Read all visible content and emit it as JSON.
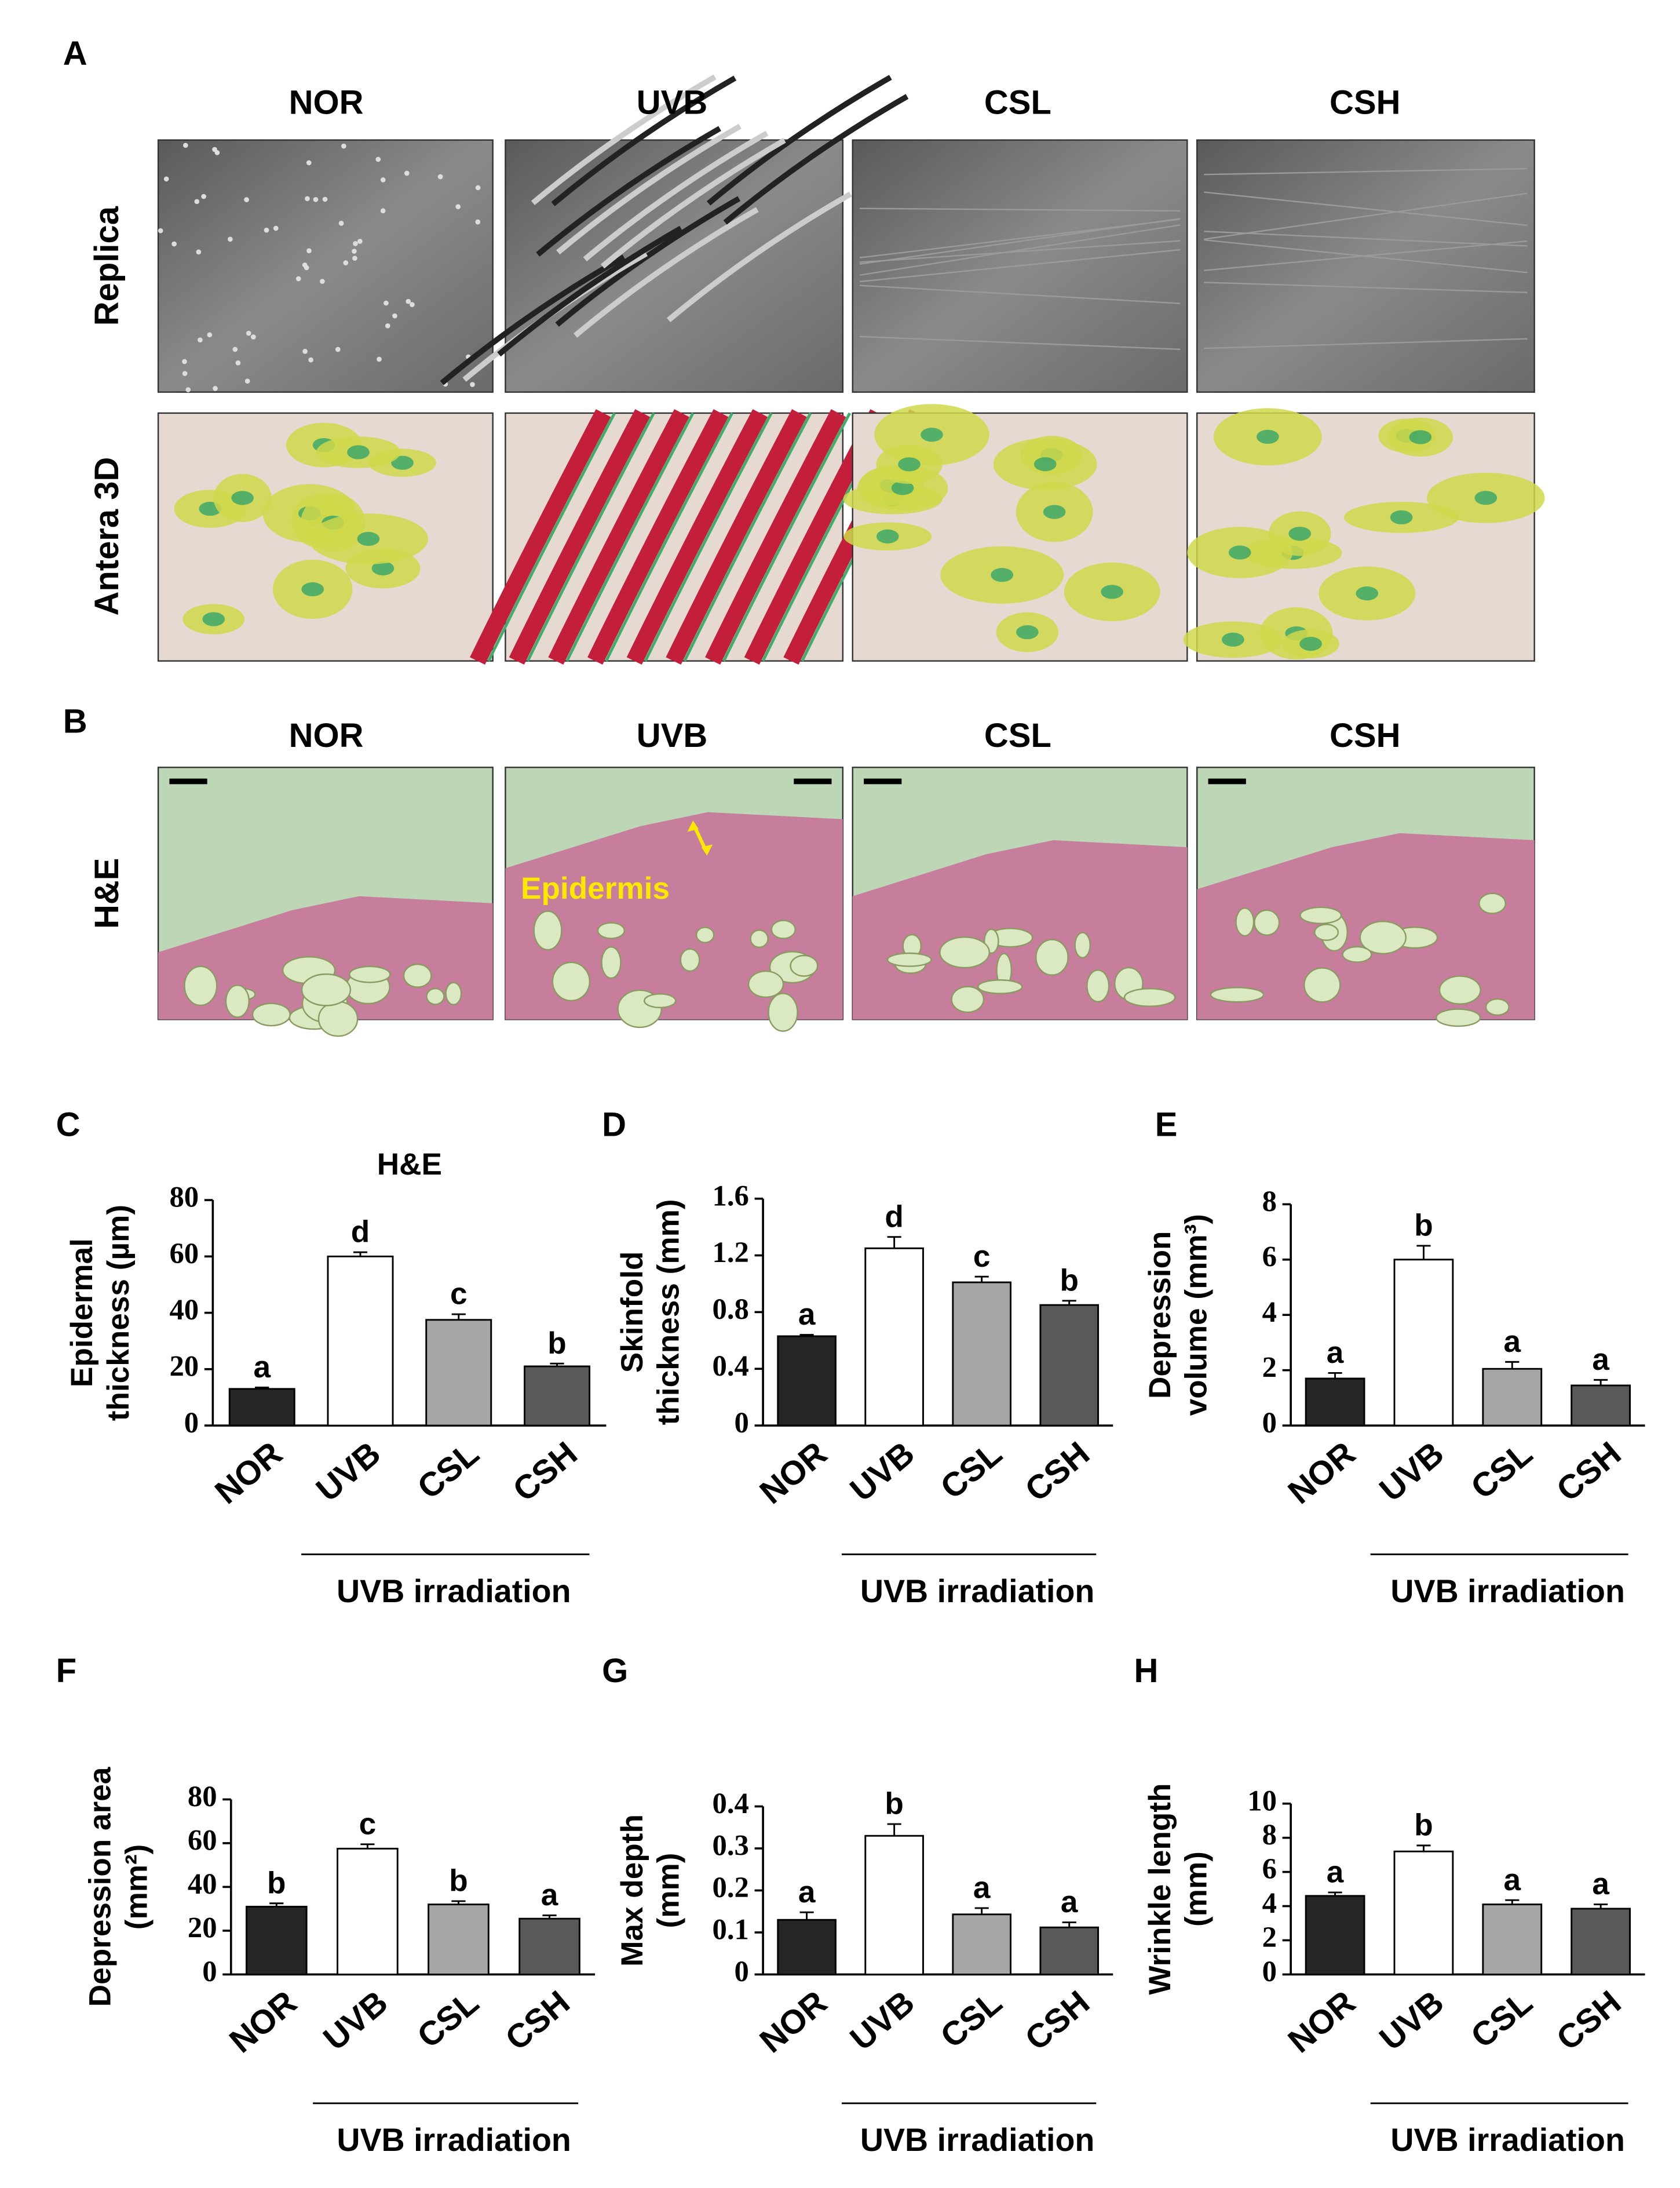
{
  "panel_a": {
    "label": "A",
    "columns": [
      "NOR",
      "UVB",
      "CSL",
      "CSH"
    ],
    "rows": [
      "Replica",
      "Antera 3D"
    ]
  },
  "panel_b": {
    "label": "B",
    "columns": [
      "NOR",
      "UVB",
      "CSL",
      "CSH"
    ],
    "rows": [
      "H&E"
    ],
    "annotation": "Epidermis"
  },
  "chart_data": [
    {
      "type": "bar",
      "label": "C",
      "title": "H&E",
      "ylabel": [
        "Epidermal",
        "thickness (µm)"
      ],
      "categories": [
        "NOR",
        "UVB",
        "CSL",
        "CSH"
      ],
      "values": [
        13,
        60,
        37.5,
        21
      ],
      "errors": [
        0.5,
        1.5,
        2,
        1
      ],
      "annotations": [
        "a",
        "d",
        "c",
        "b"
      ],
      "colors": [
        "#262626",
        "#ffffff",
        "#a6a6a6",
        "#595959"
      ],
      "ylim": [
        0,
        80
      ],
      "yticks": [
        0,
        20,
        40,
        60,
        80
      ],
      "group_label": "UVB irradiation"
    },
    {
      "type": "bar",
      "label": "D",
      "ylabel": [
        "Skinfold",
        "thickness (mm)"
      ],
      "categories": [
        "NOR",
        "UVB",
        "CSL",
        "CSH"
      ],
      "values": [
        0.63,
        1.25,
        1.01,
        0.85
      ],
      "errors": [
        0.01,
        0.08,
        0.04,
        0.03
      ],
      "annotations": [
        "a",
        "d",
        "c",
        "b"
      ],
      "colors": [
        "#262626",
        "#ffffff",
        "#a6a6a6",
        "#595959"
      ],
      "ylim": [
        0,
        1.6
      ],
      "yticks": [
        0,
        0.4,
        0.8,
        1.2,
        1.6
      ],
      "group_label": "UVB irradiation"
    },
    {
      "type": "bar",
      "label": "E",
      "ylabel": [
        "Depression",
        "volume (mm³)"
      ],
      "categories": [
        "NOR",
        "UVB",
        "CSL",
        "CSH"
      ],
      "values": [
        1.7,
        6.0,
        2.05,
        1.45
      ],
      "errors": [
        0.2,
        0.5,
        0.25,
        0.2
      ],
      "annotations": [
        "a",
        "b",
        "a",
        "a"
      ],
      "colors": [
        "#262626",
        "#ffffff",
        "#a6a6a6",
        "#595959"
      ],
      "ylim": [
        0,
        8
      ],
      "yticks": [
        0,
        2,
        4,
        6,
        8
      ],
      "group_label": "UVB irradiation"
    },
    {
      "type": "bar",
      "label": "F",
      "ylabel": [
        "Depression area",
        "(mm²)"
      ],
      "categories": [
        "NOR",
        "UVB",
        "CSL",
        "CSH"
      ],
      "values": [
        31,
        57.5,
        32,
        25.5
      ],
      "errors": [
        1.5,
        2,
        1.5,
        1.5
      ],
      "annotations": [
        "b",
        "c",
        "b",
        "a"
      ],
      "colors": [
        "#262626",
        "#ffffff",
        "#a6a6a6",
        "#595959"
      ],
      "ylim": [
        0,
        80
      ],
      "yticks": [
        0,
        20,
        40,
        60,
        80
      ],
      "group_label": "UVB irradiation"
    },
    {
      "type": "bar",
      "label": "G",
      "ylabel": [
        "Max depth",
        "(mm)"
      ],
      "categories": [
        "NOR",
        "UVB",
        "CSL",
        "CSH"
      ],
      "values": [
        0.13,
        0.33,
        0.143,
        0.112
      ],
      "errors": [
        0.018,
        0.028,
        0.015,
        0.012
      ],
      "annotations": [
        "a",
        "b",
        "a",
        "a"
      ],
      "colors": [
        "#262626",
        "#ffffff",
        "#a6a6a6",
        "#595959"
      ],
      "ylim": [
        0,
        0.4
      ],
      "yticks": [
        0,
        0.1,
        0.2,
        0.3,
        0.4
      ],
      "group_label": "UVB irradiation"
    },
    {
      "type": "bar",
      "label": "H",
      "ylabel": [
        "Wrinkle length",
        "(mm)"
      ],
      "categories": [
        "NOR",
        "UVB",
        "CSL",
        "CSH"
      ],
      "values": [
        4.6,
        7.2,
        4.1,
        3.85
      ],
      "errors": [
        0.2,
        0.35,
        0.25,
        0.25
      ],
      "annotations": [
        "a",
        "b",
        "a",
        "a"
      ],
      "colors": [
        "#262626",
        "#ffffff",
        "#a6a6a6",
        "#595959"
      ],
      "ylim": [
        0,
        10
      ],
      "yticks": [
        0,
        2,
        4,
        6,
        8,
        10
      ],
      "group_label": "UVB irradiation"
    }
  ]
}
